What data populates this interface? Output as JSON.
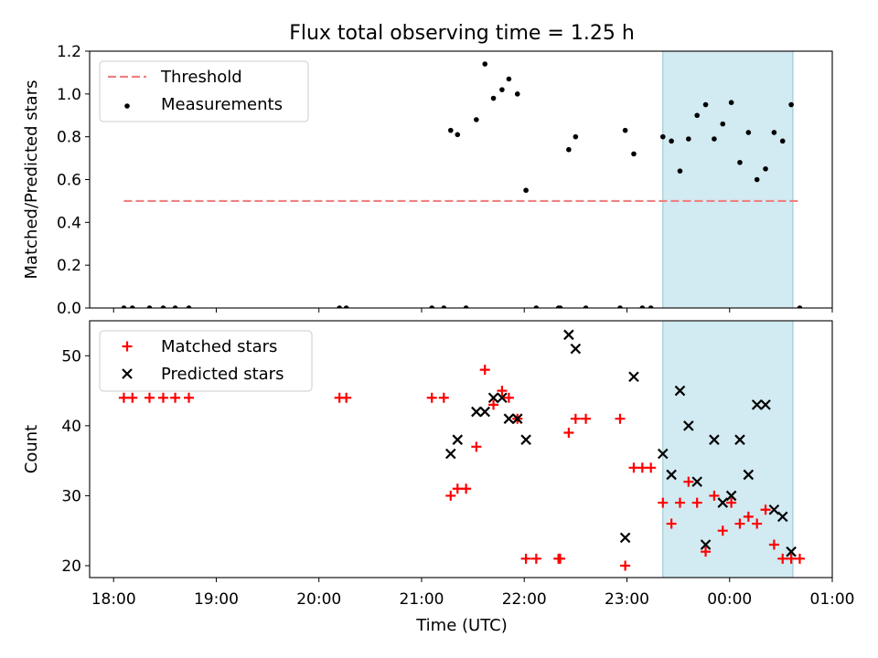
{
  "figure": {
    "title": "Flux total observing time = 1.25 h"
  },
  "chart_data": [
    {
      "type": "scatter",
      "panel": "top",
      "ylabel": "Matched/Predicted stars",
      "ylim": [
        0,
        1.2
      ],
      "yticks": [
        0.0,
        0.2,
        0.4,
        0.6,
        0.8,
        1.0,
        1.2
      ],
      "ytick_labels": [
        "0.0",
        "0.2",
        "0.4",
        "0.6",
        "0.8",
        "1.0",
        "1.2"
      ],
      "legend": {
        "placement": "upper-left",
        "entries": [
          "Threshold",
          "Measurements"
        ]
      },
      "threshold": {
        "name": "Threshold",
        "value": 0.5,
        "x_start": "18:06",
        "x_end": "00:41",
        "color": "#f08080",
        "style": "dashed"
      },
      "highlight": {
        "x_start": "23:21",
        "x_end": "00:37",
        "color": "#add8e6"
      },
      "series": [
        {
          "name": "Measurements",
          "color": "#000000",
          "marker": "dot",
          "points": [
            [
              "18:06",
              0.0
            ],
            [
              "18:11",
              0.0
            ],
            [
              "18:21",
              0.0
            ],
            [
              "18:29",
              0.0
            ],
            [
              "18:36",
              0.0
            ],
            [
              "18:44",
              0.0
            ],
            [
              "20:12",
              0.0
            ],
            [
              "20:16",
              0.0
            ],
            [
              "21:06",
              0.0
            ],
            [
              "21:13",
              0.0
            ],
            [
              "21:17",
              0.83
            ],
            [
              "21:21",
              0.81
            ],
            [
              "21:26",
              0.0
            ],
            [
              "21:32",
              0.88
            ],
            [
              "21:37",
              1.14
            ],
            [
              "21:42",
              0.98
            ],
            [
              "21:47",
              1.02
            ],
            [
              "21:51",
              1.07
            ],
            [
              "21:56",
              1.0
            ],
            [
              "22:01",
              0.55
            ],
            [
              "22:07",
              0.0
            ],
            [
              "22:20",
              0.0
            ],
            [
              "22:21",
              0.0
            ],
            [
              "22:26",
              0.74
            ],
            [
              "22:30",
              0.8
            ],
            [
              "22:36",
              0.0
            ],
            [
              "22:56",
              0.0
            ],
            [
              "22:59",
              0.83
            ],
            [
              "23:04",
              0.72
            ],
            [
              "23:09",
              0.0
            ],
            [
              "23:14",
              0.0
            ],
            [
              "23:21",
              0.8
            ],
            [
              "23:26",
              0.78
            ],
            [
              "23:31",
              0.64
            ],
            [
              "23:36",
              0.79
            ],
            [
              "23:41",
              0.9
            ],
            [
              "23:46",
              0.95
            ],
            [
              "23:51",
              0.79
            ],
            [
              "23:56",
              0.86
            ],
            [
              "00:01",
              0.96
            ],
            [
              "00:06",
              0.68
            ],
            [
              "00:11",
              0.82
            ],
            [
              "00:16",
              0.6
            ],
            [
              "00:21",
              0.65
            ],
            [
              "00:26",
              0.82
            ],
            [
              "00:31",
              0.78
            ],
            [
              "00:36",
              0.95
            ],
            [
              "00:41",
              0.0
            ]
          ]
        }
      ]
    },
    {
      "type": "scatter",
      "panel": "bottom",
      "xlabel": "Time (UTC)",
      "ylabel": "Count",
      "ylim": [
        18.3,
        55
      ],
      "yticks": [
        20,
        30,
        40,
        50
      ],
      "ytick_labels": [
        "20",
        "30",
        "40",
        "50"
      ],
      "xticks": [
        "18:00",
        "19:00",
        "20:00",
        "21:00",
        "22:00",
        "23:00",
        "00:00",
        "01:00"
      ],
      "xtick_labels": [
        "18:00",
        "19:00",
        "20:00",
        "21:00",
        "22:00",
        "23:00",
        "00:00",
        "01:00"
      ],
      "xlim": [
        "17:46",
        "01:00"
      ],
      "legend": {
        "placement": "upper-left",
        "entries": [
          "Matched stars",
          "Predicted stars"
        ]
      },
      "highlight": {
        "x_start": "23:21",
        "x_end": "00:37",
        "color": "#add8e6"
      },
      "series": [
        {
          "name": "Matched stars",
          "color": "#ff0000",
          "marker": "plus",
          "points": [
            [
              "18:06",
              44
            ],
            [
              "18:11",
              44
            ],
            [
              "18:21",
              44
            ],
            [
              "18:29",
              44
            ],
            [
              "18:36",
              44
            ],
            [
              "18:44",
              44
            ],
            [
              "20:12",
              44
            ],
            [
              "20:16",
              44
            ],
            [
              "21:06",
              44
            ],
            [
              "21:13",
              44
            ],
            [
              "21:17",
              30
            ],
            [
              "21:21",
              31
            ],
            [
              "21:26",
              31
            ],
            [
              "21:32",
              37
            ],
            [
              "21:37",
              48
            ],
            [
              "21:42",
              43
            ],
            [
              "21:47",
              45
            ],
            [
              "21:51",
              44
            ],
            [
              "21:56",
              41
            ],
            [
              "22:01",
              21
            ],
            [
              "22:07",
              21
            ],
            [
              "22:20",
              21
            ],
            [
              "22:21",
              21
            ],
            [
              "22:26",
              39
            ],
            [
              "22:30",
              41
            ],
            [
              "22:36",
              41
            ],
            [
              "22:56",
              41
            ],
            [
              "22:59",
              20
            ],
            [
              "23:04",
              34
            ],
            [
              "23:09",
              34
            ],
            [
              "23:14",
              34
            ],
            [
              "23:21",
              29
            ],
            [
              "23:26",
              26
            ],
            [
              "23:31",
              29
            ],
            [
              "23:36",
              32
            ],
            [
              "23:41",
              29
            ],
            [
              "23:46",
              22
            ],
            [
              "23:51",
              30
            ],
            [
              "23:56",
              25
            ],
            [
              "00:01",
              29
            ],
            [
              "00:06",
              26
            ],
            [
              "00:11",
              27
            ],
            [
              "00:16",
              26
            ],
            [
              "00:21",
              28
            ],
            [
              "00:26",
              23
            ],
            [
              "00:31",
              21
            ],
            [
              "00:36",
              21
            ],
            [
              "00:41",
              21
            ]
          ]
        },
        {
          "name": "Predicted stars",
          "color": "#000000",
          "marker": "x",
          "points": [
            [
              "21:17",
              36
            ],
            [
              "21:21",
              38
            ],
            [
              "21:32",
              42
            ],
            [
              "21:37",
              42
            ],
            [
              "21:42",
              44
            ],
            [
              "21:47",
              44
            ],
            [
              "21:51",
              41
            ],
            [
              "21:56",
              41
            ],
            [
              "22:01",
              38
            ],
            [
              "22:26",
              53
            ],
            [
              "22:30",
              51
            ],
            [
              "22:59",
              24
            ],
            [
              "23:04",
              47
            ],
            [
              "23:21",
              36
            ],
            [
              "23:26",
              33
            ],
            [
              "23:31",
              45
            ],
            [
              "23:36",
              40
            ],
            [
              "23:41",
              32
            ],
            [
              "23:46",
              23
            ],
            [
              "23:51",
              38
            ],
            [
              "23:56",
              29
            ],
            [
              "00:01",
              30
            ],
            [
              "00:06",
              38
            ],
            [
              "00:11",
              33
            ],
            [
              "00:16",
              43
            ],
            [
              "00:21",
              43
            ],
            [
              "00:26",
              28
            ],
            [
              "00:31",
              27
            ],
            [
              "00:36",
              22
            ]
          ]
        }
      ]
    }
  ]
}
